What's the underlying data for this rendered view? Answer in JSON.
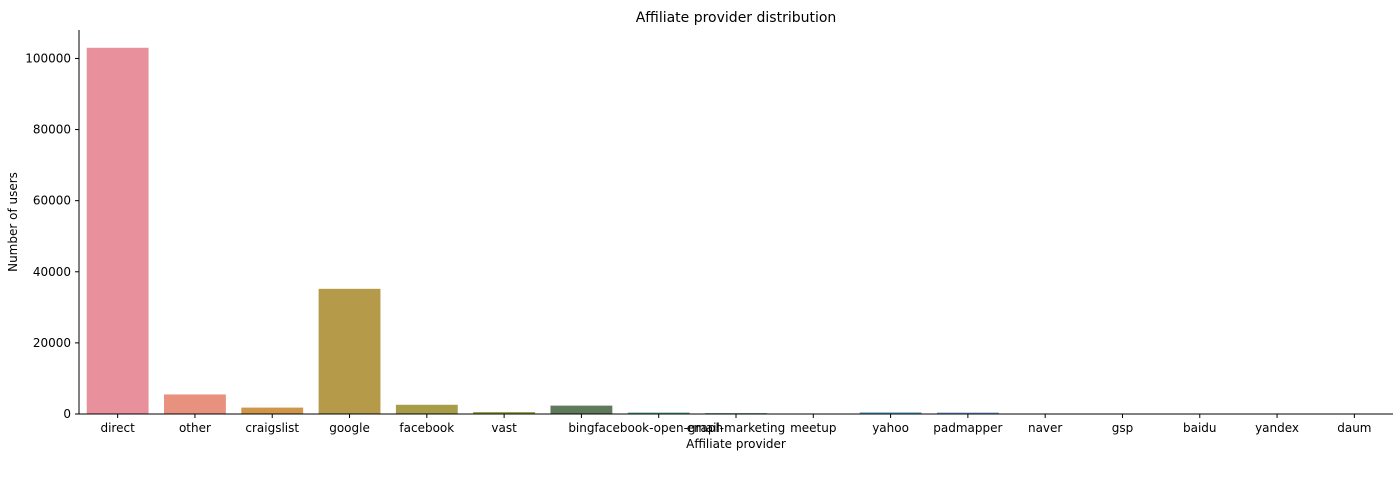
{
  "chart_data": {
    "type": "bar",
    "title": "Affiliate provider distribution",
    "xlabel": "Affiliate provider",
    "ylabel": "Number of users",
    "ylim": [
      0,
      108000
    ],
    "yticks": [
      0,
      20000,
      40000,
      60000,
      80000,
      100000
    ],
    "ytick_labels": [
      "0",
      "20000",
      "40000",
      "60000",
      "80000",
      "100000"
    ],
    "grid": false,
    "categories": [
      "direct",
      "other",
      "craigslist",
      "google",
      "facebook",
      "vast",
      "bing",
      "facebook-open-graph",
      "email-marketing",
      "meetup",
      "yahoo",
      "padmapper",
      "naver",
      "gsp",
      "baidu",
      "yandex",
      "daum"
    ],
    "values": [
      103000,
      5500,
      1800,
      35200,
      2600,
      550,
      2350,
      400,
      250,
      60,
      450,
      400,
      50,
      40,
      20,
      15,
      10
    ],
    "colors": [
      "#e8919c",
      "#e8917e",
      "#cf9548",
      "#b59a49",
      "#a79d48",
      "#969f48",
      "#5e7a5a",
      "#55a384",
      "#57a59c",
      "#56a5b1",
      "#5aa0c2",
      "#7497d7",
      "#9c8fde",
      "#c28ae0",
      "#dd83d3",
      "#e487bd",
      "#e88ea8"
    ]
  }
}
